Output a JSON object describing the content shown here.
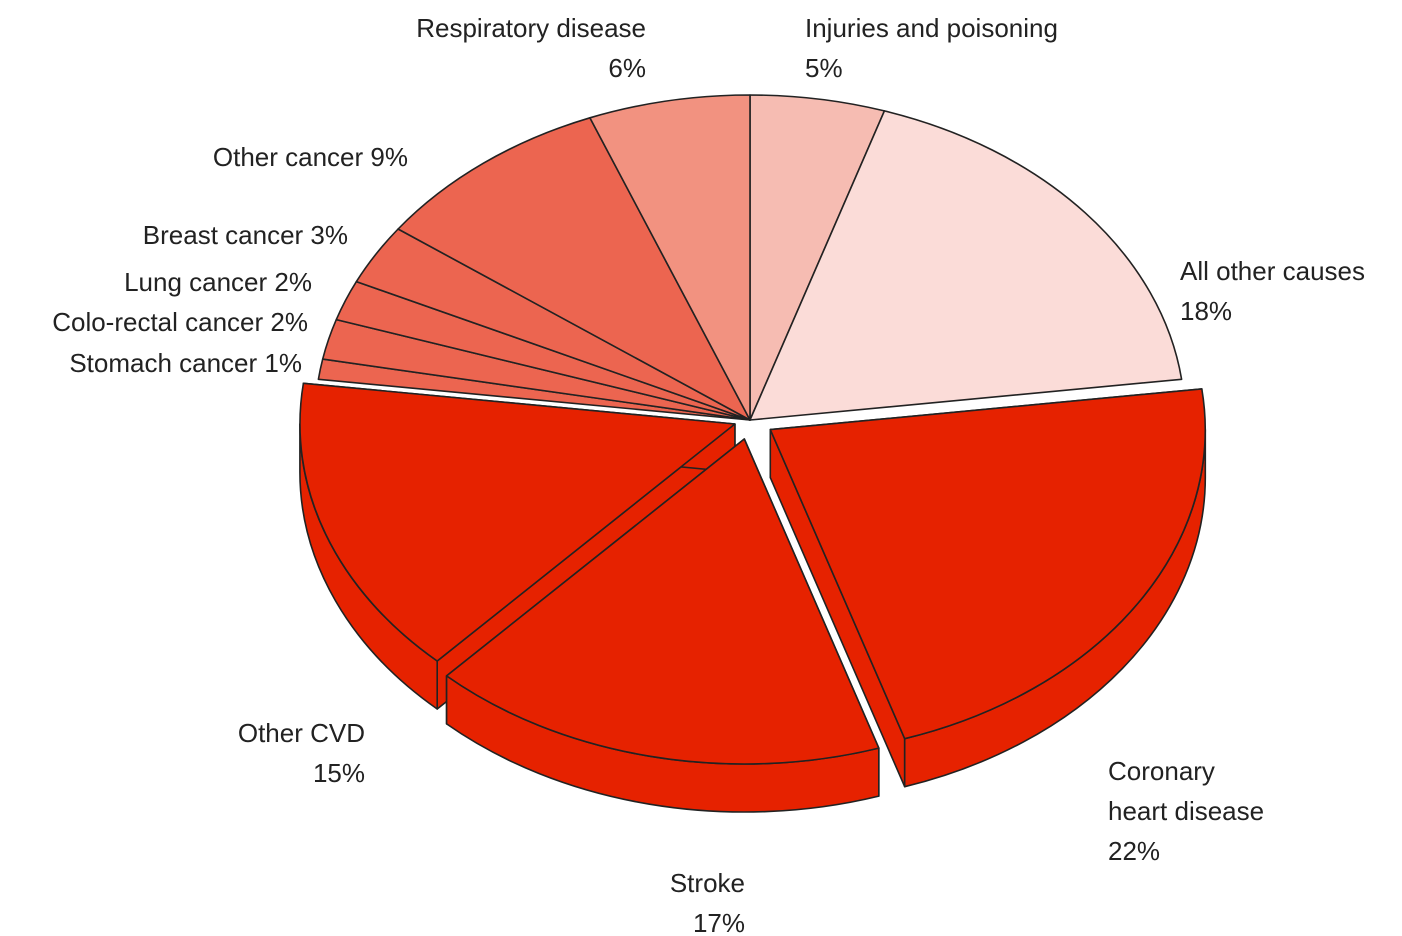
{
  "chart_data": {
    "type": "pie3d",
    "categories": [
      "Injuries and poisoning",
      "All other causes",
      "Coronary heart disease",
      "Stroke",
      "Other CVD",
      "Stomach cancer",
      "Colo-rectal cancer",
      "Lung cancer",
      "Breast cancer",
      "Other cancer",
      "Respiratory disease"
    ],
    "values": [
      5,
      18,
      22,
      17,
      15,
      1,
      2,
      2,
      3,
      9,
      6
    ],
    "value_labels": [
      "5%",
      "18%",
      "22%",
      "17%",
      "15%",
      "1%",
      "2%",
      "2%",
      "3%",
      "9%",
      "6%"
    ],
    "colors": [
      "#f6bcb2",
      "#fbdcd8",
      "#e62200",
      "#e62200",
      "#e62200",
      "#ec6550",
      "#ec6550",
      "#ec6550",
      "#ec6550",
      "#ec6550",
      "#f29280"
    ]
  }
}
